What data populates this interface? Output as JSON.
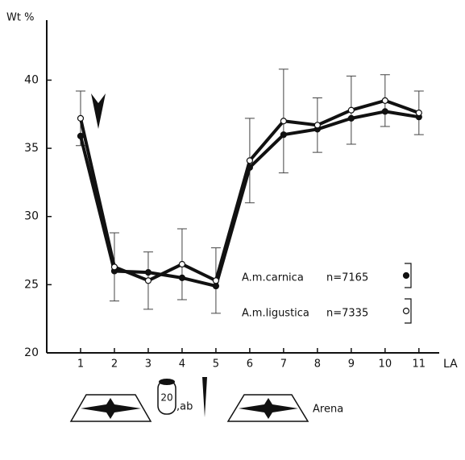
{
  "chart_data": {
    "type": "line",
    "y_label": "Wt %",
    "x_label": "LA",
    "x": [
      1,
      2,
      3,
      4,
      5,
      6,
      7,
      8,
      9,
      10,
      11
    ],
    "xlim": [
      0,
      11.6
    ],
    "xticks": [
      1,
      2,
      3,
      4,
      5,
      6,
      7,
      8,
      9,
      10,
      11
    ],
    "ylim": [
      20,
      44.4
    ],
    "yticks": [
      20,
      25,
      30,
      35,
      40
    ],
    "series": [
      {
        "name": "A.m.carnica",
        "n_label": "n=7165",
        "color": "#111111",
        "marker": "filled",
        "values": [
          35.9,
          26.0,
          25.9,
          25.5,
          24.9,
          33.6,
          36.0,
          36.4,
          37.2,
          37.7,
          37.3
        ]
      },
      {
        "name": "A.m.ligustica",
        "n_label": "n=7335",
        "color": "#111111",
        "marker": "open",
        "values": [
          37.2,
          26.3,
          25.3,
          26.5,
          25.3,
          34.1,
          37.0,
          36.7,
          37.8,
          38.5,
          37.6
        ],
        "errors": [
          2.0,
          2.5,
          2.1,
          2.6,
          2.4,
          3.1,
          3.8,
          2.0,
          2.5,
          1.9,
          1.6
        ]
      }
    ],
    "annotations": {
      "cylinder": "20",
      "suffix": ",ab",
      "arena": "Arena"
    }
  }
}
